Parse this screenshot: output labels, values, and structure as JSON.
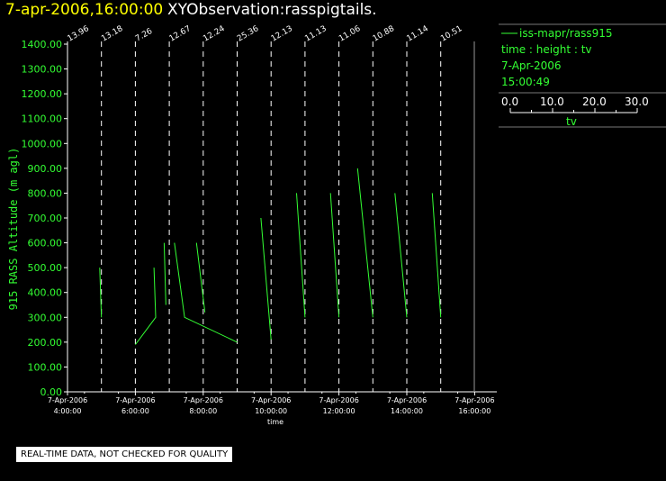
{
  "header": {
    "date_time": "7-apr-2006,16:00:00",
    "observation": "XYObservation:rasspigtails."
  },
  "legend": {
    "series": "iss-mapr/rass915",
    "axes": "time : height : tv",
    "date": "7-Apr-2006",
    "time": "15:00:49",
    "scale_label": "tv",
    "scale_ticks": [
      "0.0",
      "10.0",
      "20.0",
      "30.0"
    ]
  },
  "footer": {
    "note": "REAL-TIME DATA, NOT CHECKED FOR QUALITY"
  },
  "colors": {
    "trace": "#33ff33",
    "axis": "#ffffff",
    "date_title": "#ffff00"
  },
  "chart_data": {
    "type": "line",
    "ylabel": "915 RASS Altitude (m agl)",
    "xlabel": "time",
    "ylim": [
      0,
      1400
    ],
    "xlim": [
      3.5,
      16.5
    ],
    "yticks": [
      "0.00",
      "100.00",
      "200.00",
      "300.00",
      "400.00",
      "500.00",
      "600.00",
      "700.00",
      "800.00",
      "900.00",
      "1000.00",
      "1100.00",
      "1200.00",
      "1300.00",
      "1400.00"
    ],
    "xticks": [
      {
        "x": 4,
        "date": "7-Apr-2006",
        "time": "4:00:00"
      },
      {
        "x": 6,
        "date": "7-Apr-2006",
        "time": "6:00:00"
      },
      {
        "x": 8,
        "date": "7-Apr-2006",
        "time": "8:00:00"
      },
      {
        "x": 10,
        "date": "7-Apr-2006",
        "time": "10:00:00"
      },
      {
        "x": 12,
        "date": "7-Apr-2006",
        "time": "12:00:00"
      },
      {
        "x": 14,
        "date": "7-Apr-2006",
        "time": "14:00:00"
      },
      {
        "x": 16,
        "date": "7-Apr-2006",
        "time": "16:00:00"
      }
    ],
    "profiles": [
      {
        "x": 4.0,
        "label": "13.96"
      },
      {
        "x": 5.0,
        "label": "13.18"
      },
      {
        "x": 6.0,
        "label": "7.26"
      },
      {
        "x": 7.0,
        "label": "12.67"
      },
      {
        "x": 8.0,
        "label": "12.24"
      },
      {
        "x": 9.0,
        "label": "25.36"
      },
      {
        "x": 10.0,
        "label": "12.13"
      },
      {
        "x": 11.0,
        "label": "11.13"
      },
      {
        "x": 12.0,
        "label": "11.06"
      },
      {
        "x": 13.0,
        "label": "10.88"
      },
      {
        "x": 14.0,
        "label": "11.14"
      },
      {
        "x": 15.0,
        "label": "10.51"
      }
    ],
    "series": [
      {
        "points": [
          [
            4.95,
            500
          ],
          [
            5.0,
            300
          ]
        ]
      },
      {
        "points": [
          [
            6.0,
            190
          ],
          [
            6.6,
            300
          ],
          [
            6.55,
            500
          ]
        ]
      },
      {
        "points": [
          [
            6.85,
            600
          ],
          [
            6.9,
            350
          ]
        ]
      },
      {
        "points": [
          [
            7.15,
            600
          ],
          [
            7.45,
            300
          ],
          [
            9.0,
            200
          ]
        ]
      },
      {
        "points": [
          [
            7.8,
            600
          ],
          [
            8.05,
            320
          ]
        ]
      },
      {
        "points": [
          [
            9.7,
            700
          ],
          [
            10.0,
            210
          ]
        ]
      },
      {
        "points": [
          [
            10.75,
            800
          ],
          [
            11.0,
            300
          ]
        ]
      },
      {
        "points": [
          [
            11.75,
            800
          ],
          [
            12.0,
            300
          ]
        ]
      },
      {
        "points": [
          [
            12.55,
            900
          ],
          [
            13.0,
            300
          ]
        ]
      },
      {
        "points": [
          [
            13.65,
            800
          ],
          [
            14.0,
            300
          ]
        ]
      },
      {
        "points": [
          [
            14.75,
            800
          ],
          [
            15.0,
            300
          ]
        ]
      }
    ]
  }
}
